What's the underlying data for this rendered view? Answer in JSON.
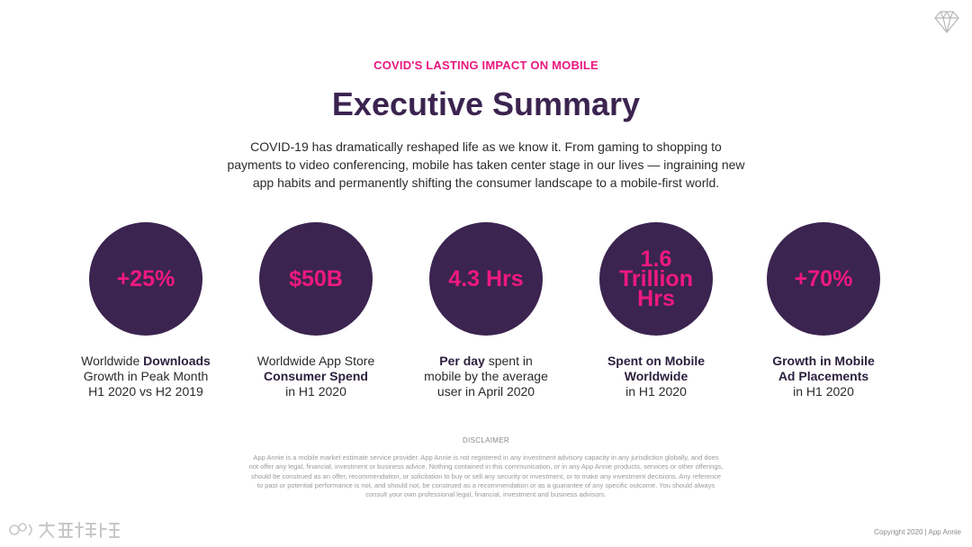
{
  "header": {
    "eyebrow": "COVID'S LASTING IMPACT ON MOBILE",
    "title": "Executive Summary",
    "intro_line1": "COVID-19 has dramatically reshaped life as we know it. From gaming to shopping to",
    "intro_line2": "payments to video conferencing, mobile has taken center stage in our lives — ingraining new",
    "intro_line3": "app habits and permanently shifting the consumer landscape to a mobile-first world."
  },
  "icons": {
    "brand": "diamond-logo-icon"
  },
  "colors": {
    "accent": "#e8187e",
    "circle": "#3b2450"
  },
  "stats": [
    {
      "value": "+25%",
      "line1_pre": "Worldwide ",
      "line1_bold": "Downloads",
      "line2_pre": "Growth in Peak Month",
      "line2_bold": "",
      "line3": "H1 2020 vs H2 2019"
    },
    {
      "value": "$50B",
      "line1_pre": "Worldwide App Store",
      "line1_bold": "",
      "line2_pre": "",
      "line2_bold": "Consumer Spend",
      "line3": "in H1 2020"
    },
    {
      "value": "4.3 Hrs",
      "line1_pre": "",
      "line1_bold": "Per day",
      "line1_post": " spent in",
      "line2_pre": "mobile by the average",
      "line2_bold": "",
      "line3": "user in April 2020"
    },
    {
      "value_line1": "1.6 Trillion",
      "value_line2": "Hrs",
      "line1_pre": "",
      "line1_bold": "Spent on Mobile",
      "line2_pre": "",
      "line2_bold": "Worldwide",
      "line3": "in H1 2020"
    },
    {
      "value": "+70%",
      "line1_pre": "",
      "line1_bold": "Growth in Mobile",
      "line2_pre": "",
      "line2_bold": "Ad Placements",
      "line3": "in H1 2020"
    }
  ],
  "footer": {
    "disclaimer_title": "DISCLAIMER",
    "disclaimer_line1": "App Annie is a mobile market estimate service provider. App Annie is not registered in any investment advisory capacity in any jurisdiction globally, and does",
    "disclaimer_line2": "not offer any legal, financial, investment or business advice. Nothing contained in this communication, or in any App Annie products, services or other offerings,",
    "disclaimer_line3": "should be construed as an offer, recommendation, or solicitation to buy or sell any security or investment, or to make any investment decisions. Any reference",
    "disclaimer_line4": "to past or potential performance is not, and should not, be construed as a recommendation or as a guarantee of any specific outcome. You should always",
    "disclaimer_line5": "consult your own professional legal, financial, investment and business advisors.",
    "copyright": "Copyright 2020  |  App Annie",
    "watermark": "大数跨境"
  }
}
